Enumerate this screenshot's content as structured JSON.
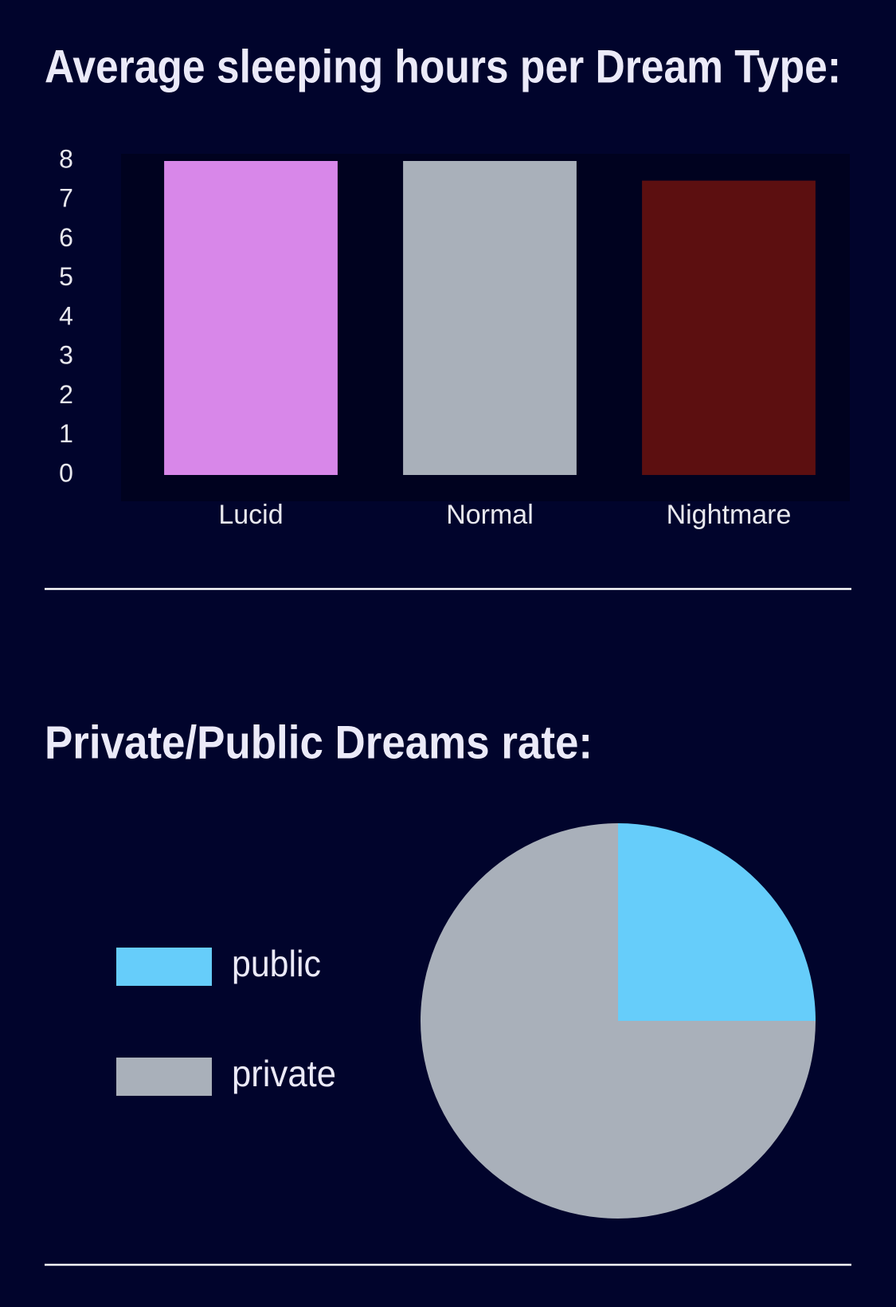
{
  "chart_data": [
    {
      "type": "bar",
      "title": "Average sleeping hours per Dream Type:",
      "categories": [
        "Lucid",
        "Normal",
        "Nightmare"
      ],
      "values": [
        8,
        8,
        7.5
      ],
      "colors": [
        "#d887e9",
        "#a9b0ba",
        "#5c0f10"
      ],
      "ylim": [
        0,
        8
      ],
      "yticks": [
        0,
        1,
        2,
        3,
        4,
        5,
        6,
        7,
        8
      ],
      "grid": false
    },
    {
      "type": "pie",
      "title": "Private/Public Dreams rate:",
      "categories": [
        "public",
        "private"
      ],
      "values": [
        25,
        75
      ],
      "colors": [
        "#66cdfa",
        "#a9b0ba"
      ],
      "legend": "left"
    }
  ]
}
